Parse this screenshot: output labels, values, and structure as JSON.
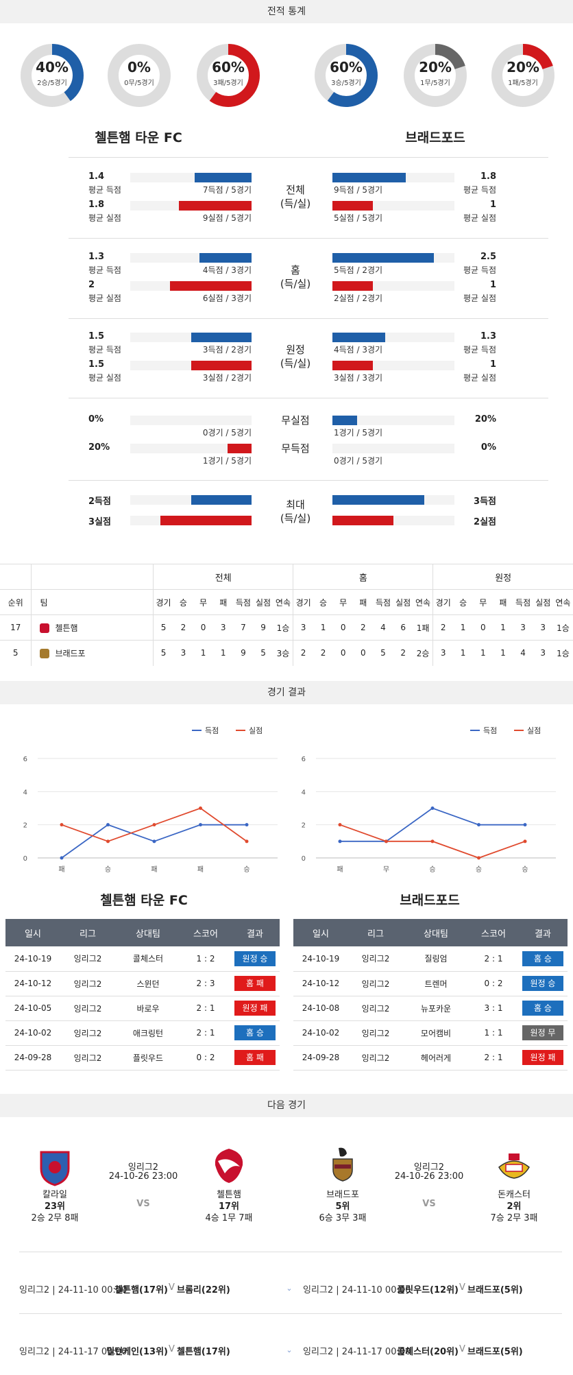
{
  "sections": {
    "stats_title": "전적 통계",
    "results_title": "경기 결과",
    "next_title": "다음 경기"
  },
  "colors": {
    "blue": "#1f5fa8",
    "red": "#d1181c",
    "gray": "#666666",
    "ring_bg": "#dddddd"
  },
  "home_team": "첼튼햄 타운 FC",
  "away_team": "브래드포드",
  "rings": [
    {
      "pct": "40%",
      "sub": "2승/5경기",
      "value": 0.4,
      "color": "#1f5fa8"
    },
    {
      "pct": "0%",
      "sub": "0무/5경기",
      "value": 0.0,
      "color": "#666666"
    },
    {
      "pct": "60%",
      "sub": "3패/5경기",
      "value": 0.6,
      "color": "#d1181c"
    },
    {
      "pct": "60%",
      "sub": "3승/5경기",
      "value": 0.6,
      "color": "#1f5fa8"
    },
    {
      "pct": "20%",
      "sub": "1무/5경기",
      "value": 0.2,
      "color": "#666666"
    },
    {
      "pct": "20%",
      "sub": "1패/5경기",
      "value": 0.2,
      "color": "#d1181c"
    }
  ],
  "stat_groups": [
    {
      "label1": "전체",
      "label2": "(득/실)",
      "rows": [
        {
          "lval": "1.4",
          "llab": "평균 득점",
          "lcnt": "7득점 / 5경기",
          "lfrac": 0.47,
          "color": "blue",
          "rval": "1.8",
          "rlab": "평균 득점",
          "rcnt": "9득점 / 5경기",
          "rfrac": 0.6
        },
        {
          "lval": "1.8",
          "llab": "평균 실점",
          "lcnt": "9실점 / 5경기",
          "lfrac": 0.6,
          "color": "red",
          "rval": "1",
          "rlab": "평균 실점",
          "rcnt": "5실점 / 5경기",
          "rfrac": 0.33
        }
      ]
    },
    {
      "label1": "홈",
      "label2": "(득/실)",
      "rows": [
        {
          "lval": "1.3",
          "llab": "평균 득점",
          "lcnt": "4득점 / 3경기",
          "lfrac": 0.43,
          "color": "blue",
          "rval": "2.5",
          "rlab": "평균 득점",
          "rcnt": "5득점 / 2경기",
          "rfrac": 0.83
        },
        {
          "lval": "2",
          "llab": "평균 실점",
          "lcnt": "6실점 / 3경기",
          "lfrac": 0.67,
          "color": "red",
          "rval": "1",
          "rlab": "평균 실점",
          "rcnt": "2실점 / 2경기",
          "rfrac": 0.33
        }
      ]
    },
    {
      "label1": "원정",
      "label2": "(득/실)",
      "rows": [
        {
          "lval": "1.5",
          "llab": "평균 득점",
          "lcnt": "3득점 / 2경기",
          "lfrac": 0.5,
          "color": "blue",
          "rval": "1.3",
          "rlab": "평균 득점",
          "rcnt": "4득점 / 3경기",
          "rfrac": 0.43
        },
        {
          "lval": "1.5",
          "llab": "평균 실점",
          "lcnt": "3실점 / 2경기",
          "lfrac": 0.5,
          "color": "red",
          "rval": "1",
          "rlab": "평균 실점",
          "rcnt": "3실점 / 3경기",
          "rfrac": 0.33
        }
      ]
    }
  ],
  "clean": {
    "rows": [
      {
        "label": "무실점",
        "lval": "0%",
        "lcnt": "0경기 / 5경기",
        "lfrac": 0.0,
        "color": "blue",
        "rval": "20%",
        "rcnt": "1경기 / 5경기",
        "rfrac": 0.2
      },
      {
        "label": "무득점",
        "lval": "20%",
        "lcnt": "1경기 / 5경기",
        "lfrac": 0.2,
        "color": "red",
        "rval": "0%",
        "rcnt": "0경기 / 5경기",
        "rfrac": 0.0
      }
    ]
  },
  "max": {
    "label1": "최대",
    "label2": "(득/실)",
    "rows": [
      {
        "lval": "2득점",
        "lfrac": 0.5,
        "color": "blue",
        "rval": "3득점",
        "rfrac": 0.75
      },
      {
        "lval": "3실점",
        "lfrac": 0.75,
        "color": "red",
        "rval": "2실점",
        "rfrac": 0.5
      }
    ]
  },
  "standings": {
    "groups": [
      "전체",
      "홈",
      "원정"
    ],
    "headers": [
      "순위",
      "팀"
    ],
    "sub_headers": [
      "경기",
      "승",
      "무",
      "패",
      "득점",
      "실점",
      "연속"
    ],
    "rows": [
      {
        "rank": "17",
        "team": "첼튼햄",
        "all": [
          "5",
          "2",
          "0",
          "3",
          "7",
          "9",
          "1승"
        ],
        "home": [
          "3",
          "1",
          "0",
          "2",
          "4",
          "6",
          "1패"
        ],
        "away": [
          "2",
          "1",
          "0",
          "1",
          "3",
          "3",
          "1승"
        ]
      },
      {
        "rank": "5",
        "team": "브래드포",
        "all": [
          "5",
          "3",
          "1",
          "1",
          "9",
          "5",
          "3승"
        ],
        "home": [
          "2",
          "2",
          "0",
          "0",
          "5",
          "2",
          "2승"
        ],
        "away": [
          "3",
          "1",
          "1",
          "1",
          "4",
          "3",
          "1승"
        ]
      }
    ]
  },
  "chart_data": [
    {
      "type": "line",
      "categories": [
        "패",
        "승",
        "패",
        "패",
        "승"
      ],
      "series": [
        {
          "name": "득점",
          "values": [
            0,
            2,
            1,
            2,
            2
          ],
          "color": "#3a66c4"
        },
        {
          "name": "실점",
          "values": [
            2,
            1,
            2,
            3,
            1
          ],
          "color": "#e04a2e"
        }
      ],
      "ylim": [
        0,
        6
      ],
      "yticks": [
        "0",
        "2",
        "4",
        "6"
      ],
      "legend": "top-right"
    },
    {
      "type": "line",
      "categories": [
        "패",
        "무",
        "승",
        "승",
        "승"
      ],
      "series": [
        {
          "name": "득점",
          "values": [
            1,
            1,
            3,
            2,
            2
          ],
          "color": "#3a66c4"
        },
        {
          "name": "실점",
          "values": [
            2,
            1,
            1,
            0,
            1
          ],
          "color": "#e04a2e"
        }
      ],
      "ylim": [
        0,
        6
      ],
      "yticks": [
        "0",
        "2",
        "4",
        "6"
      ],
      "legend": "top-right"
    }
  ],
  "results": {
    "headers": [
      "일시",
      "리그",
      "상대팀",
      "스코어",
      "결과"
    ],
    "home": [
      {
        "date": "24-10-19",
        "league": "잉리그2",
        "opp": "콜체스터",
        "score": "1 : 2",
        "result": "원정 승",
        "kind": "blue"
      },
      {
        "date": "24-10-12",
        "league": "잉리그2",
        "opp": "스윈던",
        "score": "2 : 3",
        "result": "홈 패",
        "kind": "red"
      },
      {
        "date": "24-10-05",
        "league": "잉리그2",
        "opp": "바로우",
        "score": "2 : 1",
        "result": "원정 패",
        "kind": "red"
      },
      {
        "date": "24-10-02",
        "league": "잉리그2",
        "opp": "애크링턴",
        "score": "2 : 1",
        "result": "홈 승",
        "kind": "blue"
      },
      {
        "date": "24-09-28",
        "league": "잉리그2",
        "opp": "플릿우드",
        "score": "0 : 2",
        "result": "홈 패",
        "kind": "red"
      }
    ],
    "away": [
      {
        "date": "24-10-19",
        "league": "잉리그2",
        "opp": "질링엄",
        "score": "2 : 1",
        "result": "홈 승",
        "kind": "blue"
      },
      {
        "date": "24-10-12",
        "league": "잉리그2",
        "opp": "트렌머",
        "score": "0 : 2",
        "result": "원정 승",
        "kind": "blue"
      },
      {
        "date": "24-10-08",
        "league": "잉리그2",
        "opp": "뉴포카운",
        "score": "3 : 1",
        "result": "홈 승",
        "kind": "blue"
      },
      {
        "date": "24-10-02",
        "league": "잉리그2",
        "opp": "모어캠비",
        "score": "1 : 1",
        "result": "원정 무",
        "kind": "gray"
      },
      {
        "date": "24-09-28",
        "league": "잉리그2",
        "opp": "헤어러게",
        "score": "2 : 1",
        "result": "원정 패",
        "kind": "red"
      }
    ]
  },
  "next_match": {
    "left": {
      "league": "잉리그2",
      "datetime": "24-10-26 23:00",
      "vs": "VS",
      "team_a": {
        "name": "칼라일",
        "rank": "23위",
        "record": "2승 2무 8패",
        "crest": "carlisle-crest-icon"
      },
      "team_b": {
        "name": "첼튼햄",
        "rank": "17위",
        "record": "4승 1무 7패",
        "crest": "cheltenham-crest-icon"
      }
    },
    "right": {
      "league": "잉리그2",
      "datetime": "24-10-26 23:00",
      "vs": "VS",
      "team_a": {
        "name": "브래드포",
        "rank": "5위",
        "record": "6승 3무 3패",
        "crest": "bradford-crest-icon"
      },
      "team_b": {
        "name": "돈캐스터",
        "rank": "2위",
        "record": "7승 2무 3패",
        "crest": "doncaster-crest-icon"
      }
    }
  },
  "upcoming": {
    "left": [
      {
        "info": "잉리그2 | 24-11-10 00:00",
        "home": "첼튼햄(17위)",
        "v": "V",
        "away": "브롬리(22위)"
      },
      {
        "info": "잉리그2 | 24-11-17 00:00",
        "home": "밀턴케인(13위)",
        "v": "V",
        "away": "첼튼햄(17위)"
      }
    ],
    "right": [
      {
        "info": "잉리그2 | 24-11-10 00:00",
        "home": "플릿우드(12위)",
        "v": "V",
        "away": "브래드포(5위)"
      },
      {
        "info": "잉리그2 | 24-11-17 00:00",
        "home": "콜체스터(20위)",
        "v": "V",
        "away": "브래드포(5위)"
      }
    ]
  }
}
